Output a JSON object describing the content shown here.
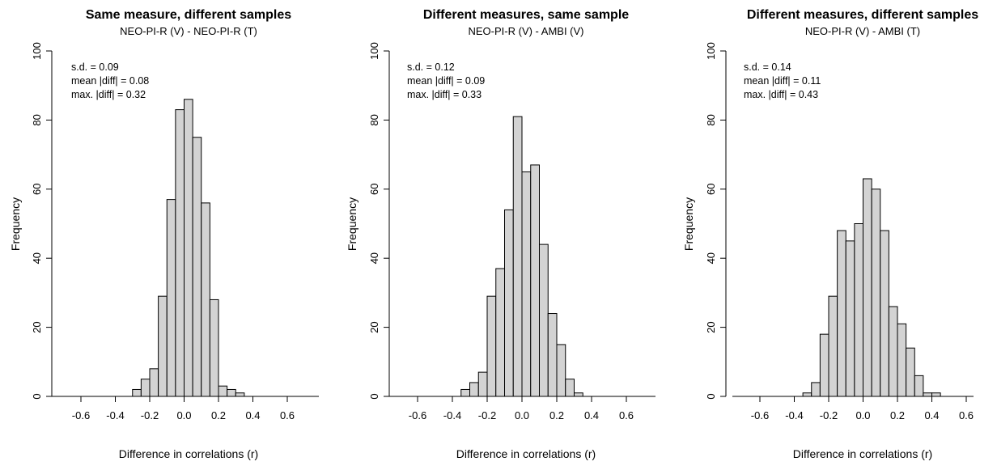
{
  "chart_data": [
    {
      "type": "bar",
      "title": "Same measure, different samples",
      "subtitle": "NEO-PI-R (V) - NEO-PI-R (T)",
      "xlabel": "Difference in correlations (r)",
      "ylabel": "Frequency",
      "xlim": [
        -0.75,
        0.75
      ],
      "ylim": [
        0,
        100
      ],
      "x_ticks": [
        "-0.6",
        "-0.4",
        "-0.2",
        "0.0",
        "0.2",
        "0.4",
        "0.6"
      ],
      "y_ticks": [
        "0",
        "20",
        "40",
        "60",
        "80",
        "100"
      ],
      "bin_width": 0.05,
      "bins": [
        {
          "x0": -0.3,
          "x1": -0.25,
          "count": 2
        },
        {
          "x0": -0.25,
          "x1": -0.2,
          "count": 5
        },
        {
          "x0": -0.2,
          "x1": -0.15,
          "count": 8
        },
        {
          "x0": -0.15,
          "x1": -0.1,
          "count": 29
        },
        {
          "x0": -0.1,
          "x1": -0.05,
          "count": 57
        },
        {
          "x0": -0.05,
          "x1": 0.0,
          "count": 83
        },
        {
          "x0": 0.0,
          "x1": 0.05,
          "count": 86
        },
        {
          "x0": 0.05,
          "x1": 0.1,
          "count": 75
        },
        {
          "x0": 0.1,
          "x1": 0.15,
          "count": 56
        },
        {
          "x0": 0.15,
          "x1": 0.2,
          "count": 28
        },
        {
          "x0": 0.2,
          "x1": 0.25,
          "count": 3
        },
        {
          "x0": 0.25,
          "x1": 0.3,
          "count": 2
        },
        {
          "x0": 0.3,
          "x1": 0.35,
          "count": 1
        }
      ],
      "annotations": [
        "s.d. = 0.09",
        "mean |diff| = 0.08",
        "max. |diff| = 0.32"
      ],
      "bar_color": "#d3d3d3"
    },
    {
      "type": "bar",
      "title": "Different measures, same sample",
      "subtitle": "NEO-PI-R (V) - AMBI (V)",
      "xlabel": "Difference in correlations (r)",
      "ylabel": "Frequency",
      "xlim": [
        -0.75,
        0.75
      ],
      "ylim": [
        0,
        100
      ],
      "x_ticks": [
        "-0.6",
        "-0.4",
        "-0.2",
        "0.0",
        "0.2",
        "0.4",
        "0.6"
      ],
      "y_ticks": [
        "0",
        "20",
        "40",
        "60",
        "80",
        "100"
      ],
      "bin_width": 0.05,
      "bins": [
        {
          "x0": -0.35,
          "x1": -0.3,
          "count": 2
        },
        {
          "x0": -0.3,
          "x1": -0.25,
          "count": 4
        },
        {
          "x0": -0.25,
          "x1": -0.2,
          "count": 7
        },
        {
          "x0": -0.2,
          "x1": -0.15,
          "count": 29
        },
        {
          "x0": -0.15,
          "x1": -0.1,
          "count": 37
        },
        {
          "x0": -0.1,
          "x1": -0.05,
          "count": 54
        },
        {
          "x0": -0.05,
          "x1": 0.0,
          "count": 81
        },
        {
          "x0": 0.0,
          "x1": 0.05,
          "count": 65
        },
        {
          "x0": 0.05,
          "x1": 0.1,
          "count": 67
        },
        {
          "x0": 0.1,
          "x1": 0.15,
          "count": 44
        },
        {
          "x0": 0.15,
          "x1": 0.2,
          "count": 24
        },
        {
          "x0": 0.2,
          "x1": 0.25,
          "count": 15
        },
        {
          "x0": 0.25,
          "x1": 0.3,
          "count": 5
        },
        {
          "x0": 0.3,
          "x1": 0.35,
          "count": 1
        }
      ],
      "annotations": [
        "s.d. = 0.12",
        "mean |diff| = 0.09",
        "max. |diff| = 0.33"
      ],
      "bar_color": "#d3d3d3"
    },
    {
      "type": "bar",
      "title": "Different measures, different samples",
      "subtitle": "NEO-PI-R (V) - AMBI (T)",
      "xlabel": "Difference in correlations (r)",
      "ylabel": "Frequency",
      "xlim": [
        -0.75,
        0.75
      ],
      "ylim": [
        0,
        100
      ],
      "x_ticks": [
        "-0.6",
        "-0.4",
        "-0.2",
        "0.0",
        "0.2",
        "0.4",
        "0.6"
      ],
      "y_ticks": [
        "0",
        "20",
        "40",
        "60",
        "80",
        "100"
      ],
      "bin_width": 0.05,
      "bins": [
        {
          "x0": -0.35,
          "x1": -0.3,
          "count": 1
        },
        {
          "x0": -0.3,
          "x1": -0.25,
          "count": 4
        },
        {
          "x0": -0.25,
          "x1": -0.2,
          "count": 18
        },
        {
          "x0": -0.2,
          "x1": -0.15,
          "count": 29
        },
        {
          "x0": -0.15,
          "x1": -0.1,
          "count": 48
        },
        {
          "x0": -0.1,
          "x1": -0.05,
          "count": 45
        },
        {
          "x0": -0.05,
          "x1": 0.0,
          "count": 50
        },
        {
          "x0": 0.0,
          "x1": 0.05,
          "count": 63
        },
        {
          "x0": 0.05,
          "x1": 0.1,
          "count": 60
        },
        {
          "x0": 0.1,
          "x1": 0.15,
          "count": 48
        },
        {
          "x0": 0.15,
          "x1": 0.2,
          "count": 26
        },
        {
          "x0": 0.2,
          "x1": 0.25,
          "count": 21
        },
        {
          "x0": 0.25,
          "x1": 0.3,
          "count": 14
        },
        {
          "x0": 0.3,
          "x1": 0.35,
          "count": 6
        },
        {
          "x0": 0.35,
          "x1": 0.4,
          "count": 1
        },
        {
          "x0": 0.4,
          "x1": 0.45,
          "count": 1
        }
      ],
      "annotations": [
        "s.d. = 0.14",
        "mean |diff| = 0.11",
        "max. |diff| = 0.43"
      ],
      "bar_color": "#d3d3d3"
    }
  ]
}
